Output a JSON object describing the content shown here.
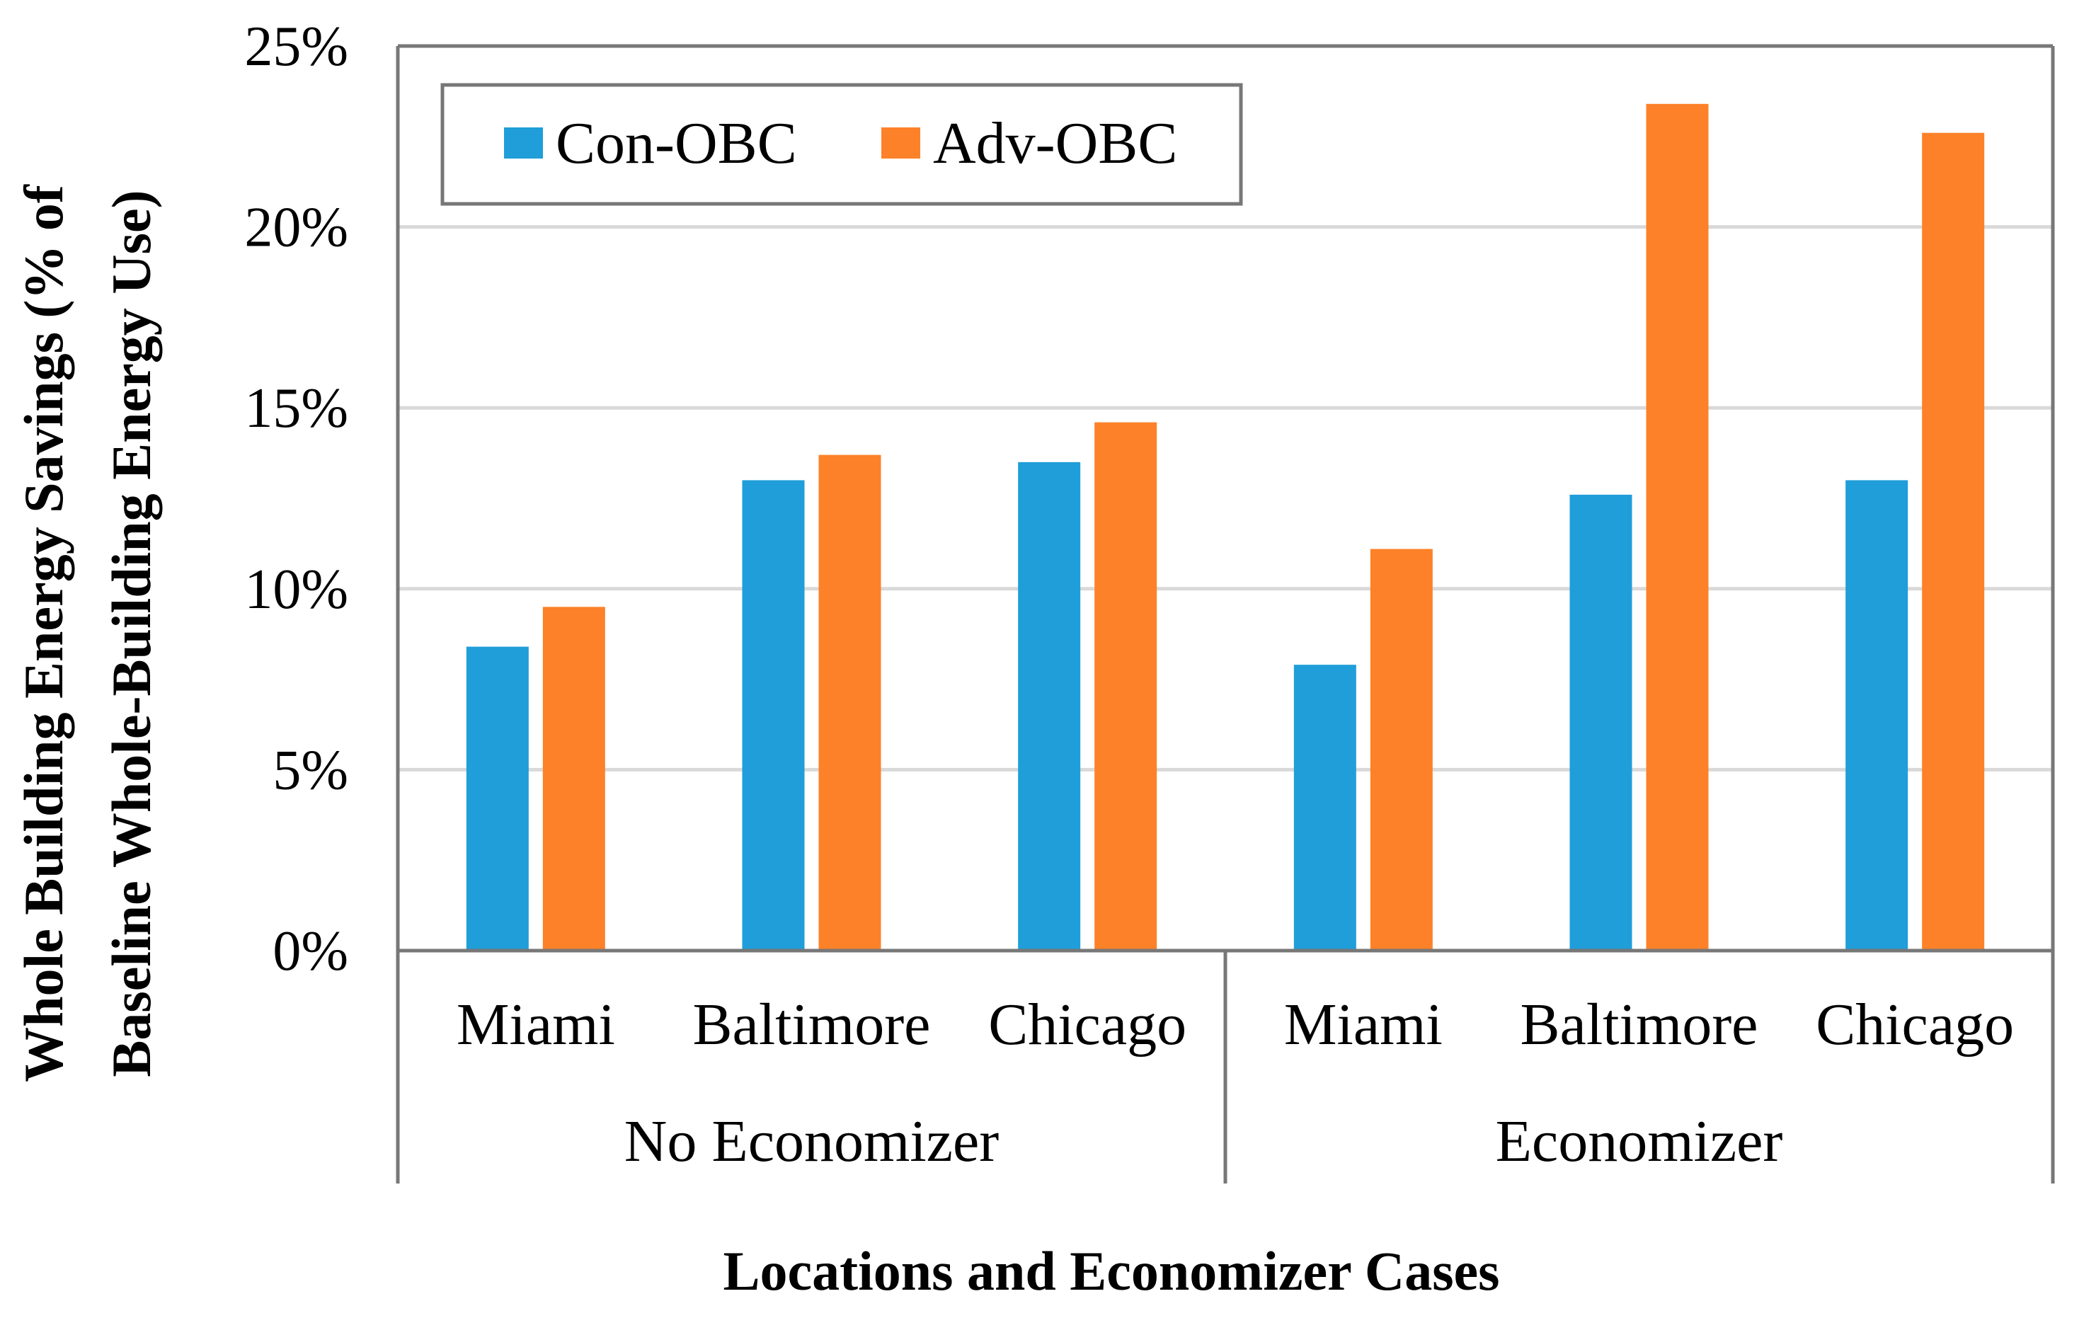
{
  "chart_data": {
    "type": "bar",
    "title": "",
    "xlabel": "Locations and Economizer Cases",
    "ylabel_lines": [
      "Whole Building Energy Savings (% of",
      "Baseline Whole-Building Energy Use)"
    ],
    "groups": [
      {
        "label": "No Economizer",
        "categories": [
          "Miami",
          "Baltimore",
          "Chicago"
        ]
      },
      {
        "label": "Economizer",
        "categories": [
          "Miami",
          "Baltimore",
          "Chicago"
        ]
      }
    ],
    "categories": [
      "Miami",
      "Baltimore",
      "Chicago",
      "Miami",
      "Baltimore",
      "Chicago"
    ],
    "series": [
      {
        "name": "Con-OBC",
        "color": "#1f9ed9",
        "values": [
          8.4,
          13.0,
          13.5,
          7.9,
          12.6,
          13.0
        ]
      },
      {
        "name": "Adv-OBC",
        "color": "#fd8128",
        "values": [
          9.5,
          13.7,
          14.6,
          11.1,
          23.4,
          22.6
        ]
      }
    ],
    "ylim": [
      0,
      25
    ],
    "yticks": [
      "0%",
      "5%",
      "10%",
      "15%",
      "20%",
      "25%"
    ],
    "ytick_values": [
      0,
      5,
      10,
      15,
      20,
      25
    ],
    "grid": true,
    "legend_position": "top-left"
  }
}
